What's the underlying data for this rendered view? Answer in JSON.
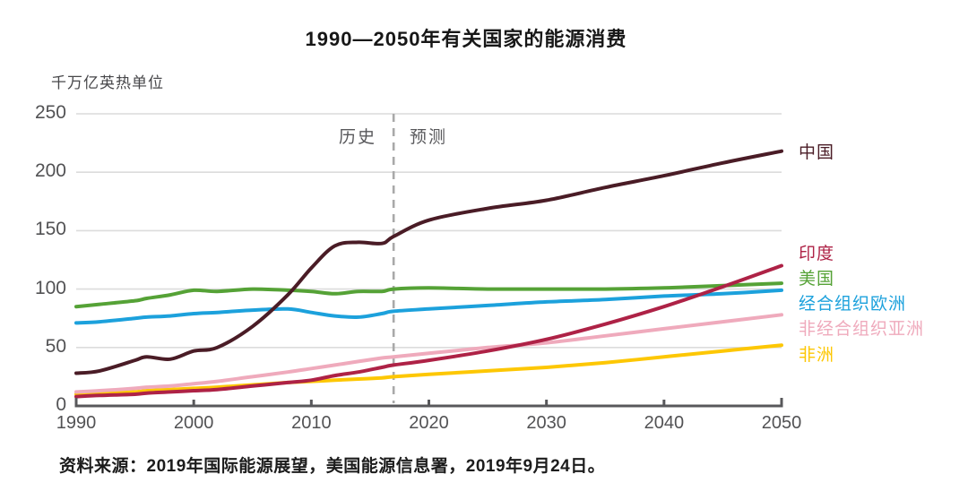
{
  "title": "1990—2050年有关国家的能源消费",
  "y_axis_unit": "千万亿英热单位",
  "divider": {
    "history_label": "历史",
    "forecast_label": "预测",
    "year": 2017
  },
  "source_note": "资料来源：2019年国际能源展望，美国能源信息署，2019年9月24日。",
  "colors": {
    "axis": "#58585b",
    "grid": "#dcdcdc",
    "divider_line": "#a9a9a9",
    "title_text": "#171717",
    "tick_text": "#525254"
  },
  "chart_data": {
    "type": "line",
    "title": "1990—2050年有关国家的能源消费",
    "xlabel": "",
    "ylabel": "千万亿英热单位",
    "xlim": [
      1990,
      2050
    ],
    "ylim": [
      0,
      250
    ],
    "x_ticks": [
      1990,
      2000,
      2010,
      2020,
      2030,
      2040,
      2050
    ],
    "y_ticks": [
      0,
      50,
      100,
      150,
      200,
      250
    ],
    "grid": "horizontal",
    "legend_position": "right",
    "history_forecast_divider_x": 2017,
    "x": [
      1990,
      1992,
      1995,
      1996,
      1998,
      2000,
      2002,
      2005,
      2008,
      2010,
      2012,
      2014,
      2016,
      2017,
      2020,
      2025,
      2030,
      2035,
      2040,
      2045,
      2050
    ],
    "series": [
      {
        "key": "china",
        "name": "中国",
        "color": "#4a1c26",
        "values": [
          28,
          30,
          39,
          42,
          40,
          47,
          50,
          68,
          95,
          118,
          137,
          140,
          139,
          145,
          159,
          169,
          176,
          187,
          197,
          208,
          218
        ]
      },
      {
        "key": "india",
        "name": "印度",
        "color": "#ae2246",
        "values": [
          8,
          9,
          10,
          11,
          12,
          13,
          14,
          17,
          20,
          22,
          26,
          29,
          33,
          35,
          39,
          47,
          57,
          70,
          85,
          102,
          120
        ]
      },
      {
        "key": "united-states",
        "name": "美国",
        "color": "#55a236",
        "values": [
          85,
          87,
          90,
          92,
          95,
          99,
          98,
          100,
          99,
          98,
          96,
          98,
          98,
          100,
          101,
          100,
          100,
          100,
          101,
          103,
          105
        ]
      },
      {
        "key": "oecd-europe",
        "name": "经合组织欧洲",
        "color": "#1ca1dc",
        "values": [
          71,
          72,
          75,
          76,
          77,
          79,
          80,
          82,
          83,
          80,
          77,
          76,
          79,
          81,
          83,
          86,
          89,
          91,
          94,
          96,
          99
        ]
      },
      {
        "key": "non-oecd-asia",
        "name": "非经合组织亚洲",
        "color": "#efaabc",
        "values": [
          12,
          13,
          15,
          16,
          17,
          19,
          21,
          25,
          29,
          32,
          35,
          38,
          41,
          42,
          45,
          50,
          54,
          60,
          66,
          72,
          78
        ]
      },
      {
        "key": "africa",
        "name": "非洲",
        "color": "#fdc704",
        "values": [
          10,
          11,
          12,
          13,
          14,
          15,
          16,
          18,
          20,
          21,
          22,
          23,
          24,
          25,
          27,
          30,
          33,
          37,
          42,
          47,
          52
        ]
      }
    ]
  }
}
